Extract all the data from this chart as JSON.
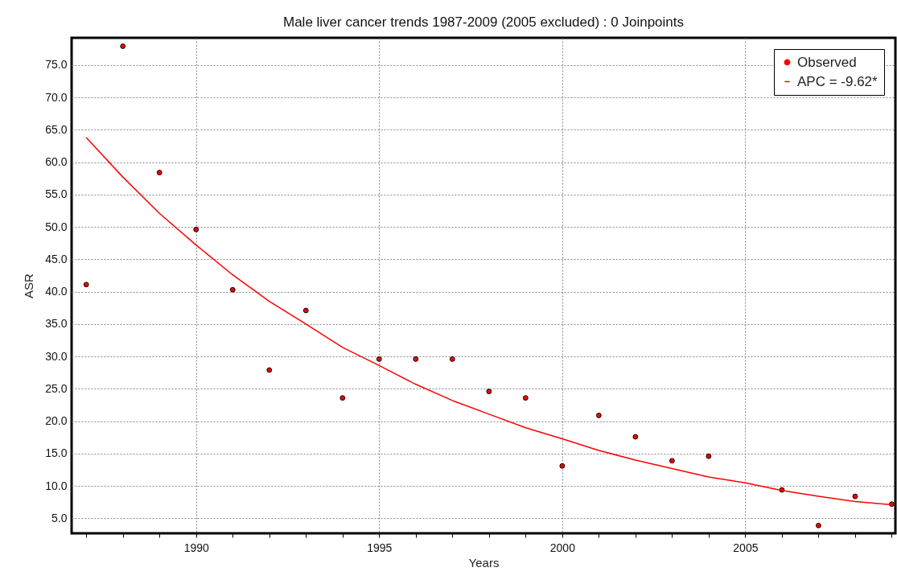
{
  "chart_data": {
    "type": "scatter",
    "title": "Male liver cancer trends 1987-2009 (2005 excluded) : 0 Joinpoints",
    "xlabel": "Years",
    "ylabel": "ASR",
    "series": [
      {
        "name": "Observed",
        "marker": "circle",
        "color": "#ff0000",
        "x": [
          1987,
          1988,
          1989,
          1990,
          1991,
          1992,
          1993,
          1994,
          1995,
          1996,
          1997,
          1998,
          1999,
          2000,
          2001,
          2002,
          2003,
          2004,
          2006,
          2007,
          2008,
          2009
        ],
        "values": [
          41.1,
          77.9,
          58.4,
          49.6,
          40.3,
          27.9,
          37.1,
          23.6,
          29.6,
          29.6,
          29.6,
          24.6,
          23.6,
          13.1,
          20.9,
          17.6,
          13.9,
          14.6,
          9.4,
          3.9,
          8.4,
          7.2
        ]
      },
      {
        "name": "APC = -9.62*",
        "type": "line",
        "marker": "none",
        "color": "#ff0000",
        "x": [
          1987,
          1988,
          1989,
          1990,
          1991,
          1992,
          1993,
          1994,
          1995,
          1996,
          1997,
          1998,
          1999,
          2000,
          2001,
          2002,
          2003,
          2004,
          2005,
          2006,
          2007,
          2008,
          2009
        ],
        "values": [
          63.8,
          57.7,
          52.1,
          47.2,
          42.6,
          38.5,
          35.0,
          31.4,
          28.6,
          25.7,
          23.2,
          21.1,
          19.0,
          17.3,
          15.5,
          14.0,
          12.7,
          11.4,
          10.5,
          9.3,
          8.4,
          7.6,
          7.1
        ]
      }
    ],
    "xlim": [
      1986.6,
      2009.1
    ],
    "xticks": [
      {
        "value": 1987,
        "label": null
      },
      {
        "value": 1988,
        "label": null
      },
      {
        "value": 1989,
        "label": null
      },
      1990,
      {
        "value": 1991,
        "label": null
      },
      {
        "value": 1992,
        "label": null
      },
      {
        "value": 1993,
        "label": null
      },
      {
        "value": 1994,
        "label": null
      },
      1995,
      {
        "value": 1996,
        "label": null
      },
      {
        "value": 1997,
        "label": null
      },
      {
        "value": 1998,
        "label": null
      },
      {
        "value": 1999,
        "label": null
      },
      2000,
      {
        "value": 2001,
        "label": null
      },
      {
        "value": 2002,
        "label": null
      },
      {
        "value": 2003,
        "label": null
      },
      {
        "value": 2004,
        "label": null
      },
      2005,
      {
        "value": 2006,
        "label": null
      },
      {
        "value": 2007,
        "label": null
      },
      {
        "value": 2008,
        "label": null
      },
      {
        "value": 2009,
        "label": null
      }
    ],
    "ylim": [
      2.7,
      79.2
    ],
    "yticks": [
      {
        "value": 5,
        "label": "5.0"
      },
      {
        "value": 10,
        "label": "10.0"
      },
      {
        "value": 15,
        "label": "15.0"
      },
      {
        "value": 20,
        "label": "20.0"
      },
      {
        "value": 25,
        "label": "25.0"
      },
      {
        "value": 30,
        "label": "30.0"
      },
      {
        "value": 35,
        "label": "35.0"
      },
      {
        "value": 40,
        "label": "40.0"
      },
      {
        "value": 45,
        "label": "45.0"
      },
      {
        "value": 50,
        "label": "50.0"
      },
      {
        "value": 55,
        "label": "55.0"
      },
      {
        "value": 60,
        "label": "60.0"
      },
      {
        "value": 65,
        "label": "65.0"
      },
      {
        "value": 70,
        "label": "70.0"
      },
      {
        "value": 75,
        "label": "75.0"
      }
    ],
    "grid": true,
    "legend": "top right",
    "line_style": "solid"
  }
}
